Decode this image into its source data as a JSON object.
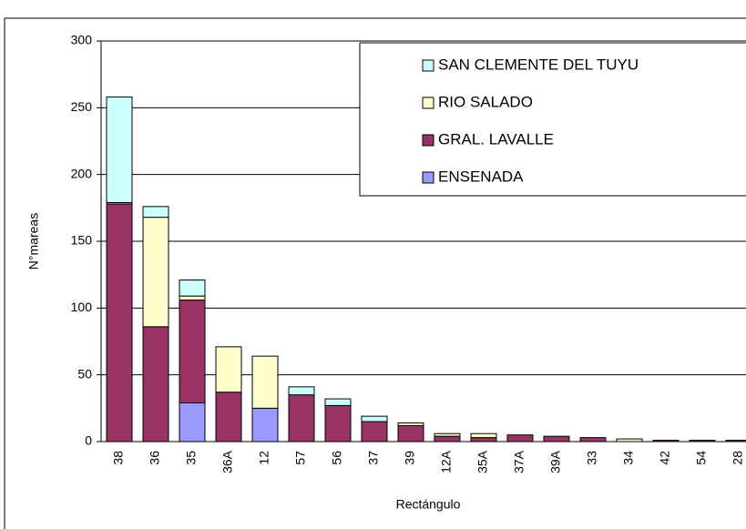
{
  "chart_data": {
    "type": "stacked-bar",
    "categories": [
      "38",
      "36",
      "35",
      "36A",
      "12",
      "57",
      "56",
      "37",
      "39",
      "12A",
      "35A",
      "37A",
      "39A",
      "33",
      "34",
      "42",
      "54",
      "28"
    ],
    "series": [
      {
        "name": "ENSENADA",
        "color": "#9999ff",
        "values": [
          0,
          0,
          29,
          0,
          25,
          0,
          0,
          0,
          0,
          0,
          0,
          0,
          0,
          0,
          0,
          0,
          0,
          0
        ]
      },
      {
        "name": "GRAL. LAVALLE",
        "color": "#993366",
        "values": [
          178,
          86,
          77,
          37,
          0,
          35,
          27,
          15,
          12,
          4,
          3,
          5,
          4,
          3,
          0,
          1,
          1,
          1
        ]
      },
      {
        "name": "RIO SALADO",
        "color": "#ffffcc",
        "values": [
          1,
          82,
          3,
          34,
          39,
          0,
          0,
          0,
          2,
          2,
          3,
          0,
          0,
          0,
          2,
          0,
          0,
          0
        ]
      },
      {
        "name": "SAN CLEMENTE DEL TUYU",
        "color": "#ccffff",
        "values": [
          79,
          8,
          12,
          0,
          0,
          6,
          5,
          4,
          0,
          0,
          0,
          0,
          0,
          0,
          0,
          0,
          0,
          0
        ]
      }
    ],
    "ylabel": "N°mareas",
    "xlabel": "Rectángulo",
    "ylim": [
      0,
      300
    ],
    "yticks": [
      0,
      50,
      100,
      150,
      200,
      250,
      300
    ],
    "grid": true,
    "legend": "top-right"
  }
}
